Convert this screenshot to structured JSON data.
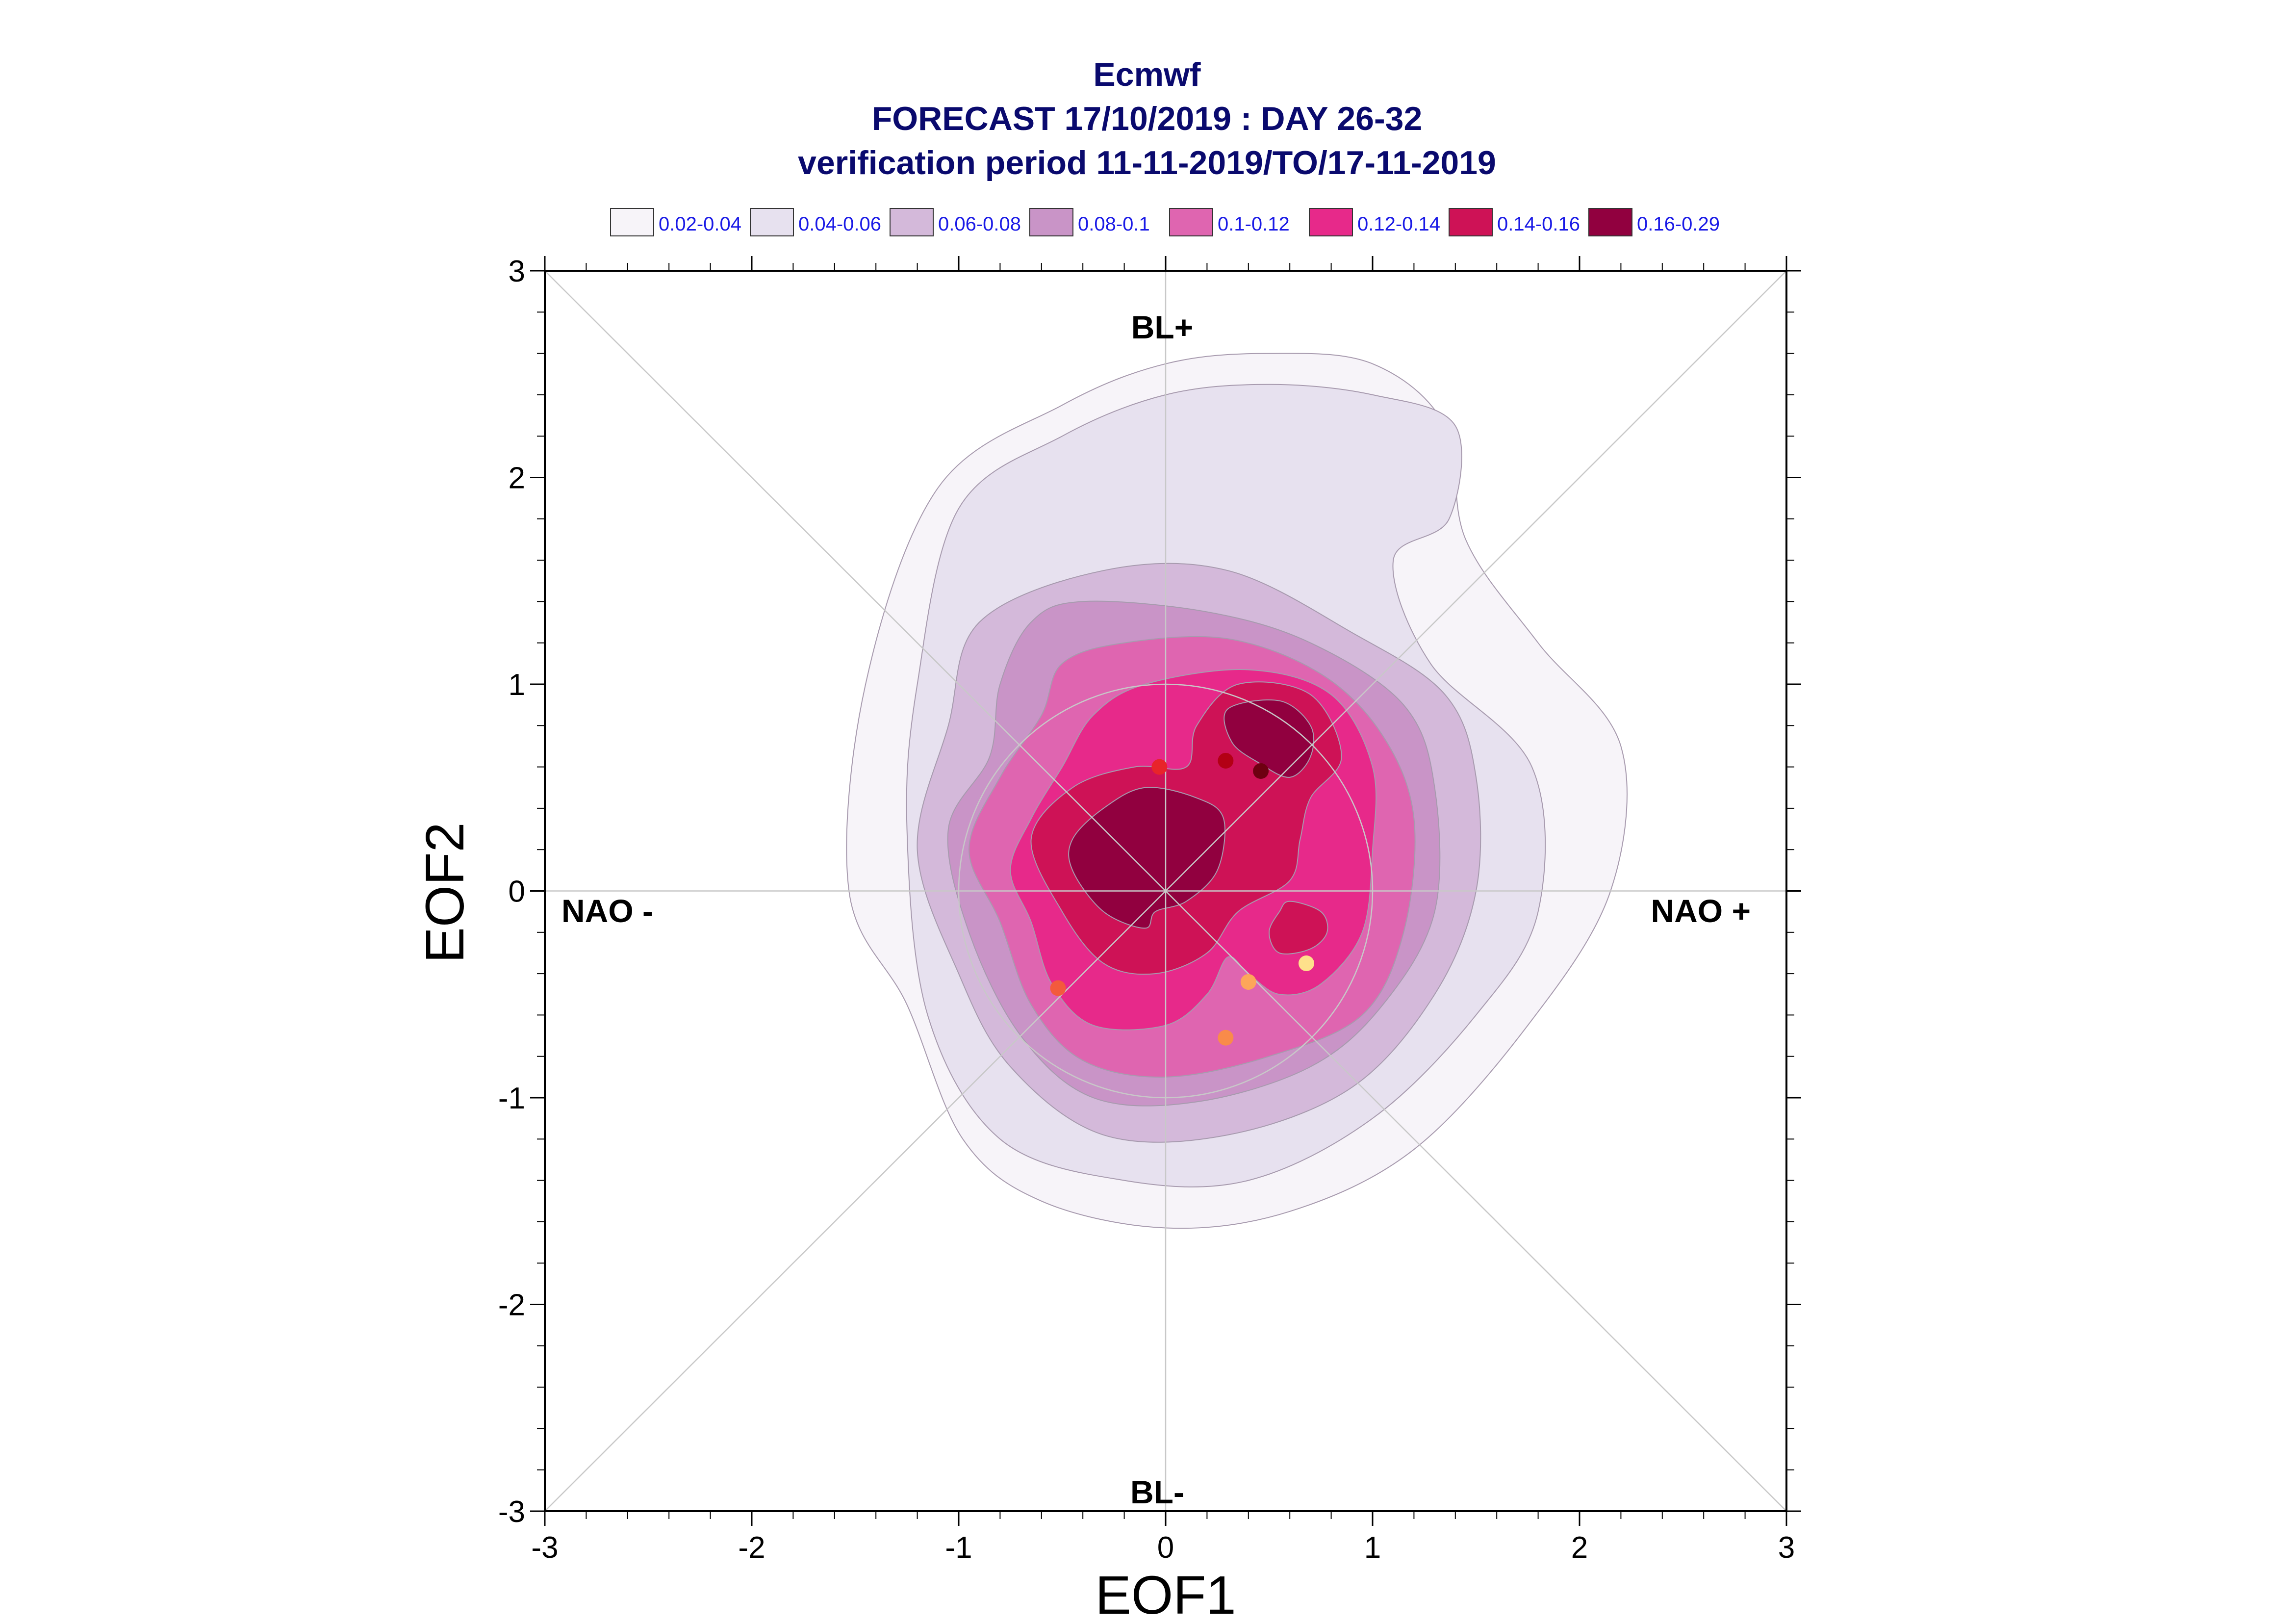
{
  "chart_data": {
    "type": "contour",
    "title_lines": [
      "Ecmwf",
      "FORECAST 17/10/2019 : DAY 26-32",
      "verification period 11-11-2019/TO/17-11-2019"
    ],
    "xlabel": "EOF1",
    "ylabel": "EOF2",
    "xlim": [
      -3,
      3
    ],
    "ylim": [
      -3,
      3
    ],
    "x_ticks": [
      "-3",
      "-2",
      "-1",
      "0",
      "1",
      "2",
      "3"
    ],
    "y_ticks": [
      "-3",
      "-2",
      "-1",
      "0",
      "1",
      "2",
      "3"
    ],
    "regime_labels": {
      "top": "BL+",
      "bottom": "BL-",
      "left": "NAO -",
      "right": "NAO +"
    },
    "legend": {
      "placement": "top",
      "entries": [
        {
          "label": "0.02-0.04",
          "color": "#f7f4f9"
        },
        {
          "label": "0.04-0.06",
          "color": "#e7e1ef"
        },
        {
          "label": "0.06-0.08",
          "color": "#d4b9da"
        },
        {
          "label": "0.08-0.1",
          "color": "#c994c7"
        },
        {
          "label": "0.1-0.12",
          "color": "#df65b0"
        },
        {
          "label": "0.12-0.14",
          "color": "#e7298a"
        },
        {
          "label": "0.14-0.16",
          "color": "#ce1256"
        },
        {
          "label": "0.16-0.29",
          "color": "#91003f"
        }
      ]
    },
    "contours": [
      {
        "level": "0.02-0.04",
        "color": "#f7f4f9",
        "points": [
          [
            0.0,
            2.55
          ],
          [
            0.5,
            2.6
          ],
          [
            1.0,
            2.55
          ],
          [
            1.35,
            2.25
          ],
          [
            1.45,
            1.7
          ],
          [
            1.8,
            1.2
          ],
          [
            2.2,
            0.7
          ],
          [
            2.15,
            0.0
          ],
          [
            1.75,
            -0.65
          ],
          [
            1.2,
            -1.25
          ],
          [
            0.6,
            -1.55
          ],
          [
            0.0,
            -1.63
          ],
          [
            -0.6,
            -1.5
          ],
          [
            -0.98,
            -1.2
          ],
          [
            -1.25,
            -0.55
          ],
          [
            -1.53,
            0.0
          ],
          [
            -1.45,
            1.0
          ],
          [
            -1.1,
            1.95
          ],
          [
            -0.5,
            2.35
          ]
        ]
      },
      {
        "level": "0.04-0.06",
        "color": "#e7e1ef",
        "points": [
          [
            0.0,
            2.4
          ],
          [
            0.5,
            2.45
          ],
          [
            1.0,
            2.4
          ],
          [
            1.4,
            2.25
          ],
          [
            1.37,
            1.8
          ],
          [
            1.1,
            1.6
          ],
          [
            1.28,
            1.1
          ],
          [
            1.77,
            0.6
          ],
          [
            1.8,
            -0.1
          ],
          [
            1.5,
            -0.6
          ],
          [
            1.0,
            -1.1
          ],
          [
            0.4,
            -1.4
          ],
          [
            -0.2,
            -1.4
          ],
          [
            -0.8,
            -1.2
          ],
          [
            -1.15,
            -0.6
          ],
          [
            -1.25,
            0.3
          ],
          [
            -1.2,
            1.0
          ],
          [
            -1.0,
            1.85
          ],
          [
            -0.5,
            2.2
          ]
        ]
      },
      {
        "level": "0.06-0.08",
        "color": "#d4b9da",
        "points": [
          [
            -0.3,
            1.55
          ],
          [
            0.3,
            1.55
          ],
          [
            0.9,
            1.25
          ],
          [
            1.35,
            0.95
          ],
          [
            1.5,
            0.55
          ],
          [
            1.5,
            0.0
          ],
          [
            1.3,
            -0.5
          ],
          [
            0.9,
            -0.95
          ],
          [
            0.3,
            -1.18
          ],
          [
            -0.3,
            -1.18
          ],
          [
            -0.75,
            -0.85
          ],
          [
            -1.0,
            -0.4
          ],
          [
            -1.2,
            0.2
          ],
          [
            -1.05,
            0.8
          ],
          [
            -0.9,
            1.3
          ]
        ]
      },
      {
        "level": "0.08-0.1",
        "color": "#c994c7",
        "points": [
          [
            -0.4,
            1.4
          ],
          [
            0.2,
            1.35
          ],
          [
            0.7,
            1.2
          ],
          [
            1.15,
            0.9
          ],
          [
            1.3,
            0.5
          ],
          [
            1.3,
            -0.1
          ],
          [
            1.05,
            -0.55
          ],
          [
            0.7,
            -0.85
          ],
          [
            0.15,
            -1.02
          ],
          [
            -0.35,
            -1.0
          ],
          [
            -0.7,
            -0.7
          ],
          [
            -0.95,
            -0.2
          ],
          [
            -1.05,
            0.3
          ],
          [
            -0.85,
            0.65
          ],
          [
            -0.8,
            1.0
          ],
          [
            -0.65,
            1.3
          ]
        ]
      },
      {
        "level": "0.1-0.12",
        "color": "#df65b0",
        "points": [
          [
            -0.2,
            1.2
          ],
          [
            0.3,
            1.22
          ],
          [
            0.75,
            1.05
          ],
          [
            1.05,
            0.75
          ],
          [
            1.2,
            0.35
          ],
          [
            1.15,
            -0.2
          ],
          [
            0.95,
            -0.6
          ],
          [
            0.5,
            -0.8
          ],
          [
            0.0,
            -0.9
          ],
          [
            -0.4,
            -0.82
          ],
          [
            -0.65,
            -0.55
          ],
          [
            -0.8,
            -0.15
          ],
          [
            -0.95,
            0.2
          ],
          [
            -0.8,
            0.55
          ],
          [
            -0.6,
            0.85
          ],
          [
            -0.5,
            1.1
          ]
        ]
      },
      {
        "level": "0.12-0.14",
        "color": "#e7298a",
        "points": [
          [
            -0.1,
            1.0
          ],
          [
            0.4,
            1.07
          ],
          [
            0.8,
            0.95
          ],
          [
            1.0,
            0.6
          ],
          [
            1.0,
            0.2
          ],
          [
            0.95,
            -0.2
          ],
          [
            0.75,
            -0.45
          ],
          [
            0.55,
            -0.5
          ],
          [
            0.4,
            -0.4
          ],
          [
            0.3,
            -0.32
          ],
          [
            0.2,
            -0.5
          ],
          [
            0.0,
            -0.65
          ],
          [
            -0.35,
            -0.65
          ],
          [
            -0.55,
            -0.45
          ],
          [
            -0.65,
            -0.15
          ],
          [
            -0.75,
            0.1
          ],
          [
            -0.65,
            0.35
          ],
          [
            -0.5,
            0.6
          ],
          [
            -0.35,
            0.85
          ]
        ]
      },
      {
        "level": "0.14-0.16",
        "color": "#ce1256",
        "points": [
          [
            0.15,
            0.8
          ],
          [
            0.35,
            1.0
          ],
          [
            0.7,
            0.95
          ],
          [
            0.85,
            0.65
          ],
          [
            0.7,
            0.45
          ],
          [
            0.65,
            0.25
          ],
          [
            0.6,
            0.05
          ],
          [
            0.35,
            -0.1
          ],
          [
            0.2,
            -0.3
          ],
          [
            -0.05,
            -0.4
          ],
          [
            -0.3,
            -0.35
          ],
          [
            -0.5,
            -0.1
          ],
          [
            -0.65,
            0.25
          ],
          [
            -0.45,
            0.5
          ],
          [
            -0.15,
            0.6
          ],
          [
            0.1,
            0.6
          ]
        ]
      },
      {
        "level": "0.14-0.16",
        "color": "#ce1256",
        "points": [
          [
            0.6,
            -0.05
          ],
          [
            0.75,
            -0.1
          ],
          [
            0.78,
            -0.2
          ],
          [
            0.7,
            -0.28
          ],
          [
            0.55,
            -0.3
          ],
          [
            0.5,
            -0.2
          ],
          [
            0.55,
            -0.1
          ]
        ]
      },
      {
        "level": "0.16-0.29",
        "color": "#91003f",
        "points": [
          [
            -0.1,
            0.5
          ],
          [
            0.15,
            0.45
          ],
          [
            0.28,
            0.35
          ],
          [
            0.25,
            0.1
          ],
          [
            0.1,
            -0.05
          ],
          [
            -0.05,
            -0.1
          ],
          [
            -0.1,
            -0.18
          ],
          [
            -0.3,
            -0.1
          ],
          [
            -0.45,
            0.1
          ],
          [
            -0.45,
            0.25
          ],
          [
            -0.3,
            0.4
          ]
        ]
      },
      {
        "level": "0.16-0.29",
        "color": "#91003f",
        "points": [
          [
            0.3,
            0.88
          ],
          [
            0.55,
            0.92
          ],
          [
            0.7,
            0.8
          ],
          [
            0.7,
            0.65
          ],
          [
            0.6,
            0.55
          ],
          [
            0.45,
            0.62
          ],
          [
            0.32,
            0.72
          ]
        ]
      }
    ],
    "points": [
      {
        "x": -0.03,
        "y": 0.6,
        "color": "#e8242a"
      },
      {
        "x": 0.29,
        "y": 0.63,
        "color": "#b30014"
      },
      {
        "x": 0.46,
        "y": 0.58,
        "color": "#6e0011"
      },
      {
        "x": -0.52,
        "y": -0.47,
        "color": "#f35a3c"
      },
      {
        "x": 0.4,
        "y": -0.44,
        "color": "#fda65a"
      },
      {
        "x": 0.68,
        "y": -0.35,
        "color": "#fee08b"
      },
      {
        "x": 0.29,
        "y": -0.71,
        "color": "#f98b4a"
      }
    ],
    "reference_circle_radius": 1,
    "grid": false
  }
}
